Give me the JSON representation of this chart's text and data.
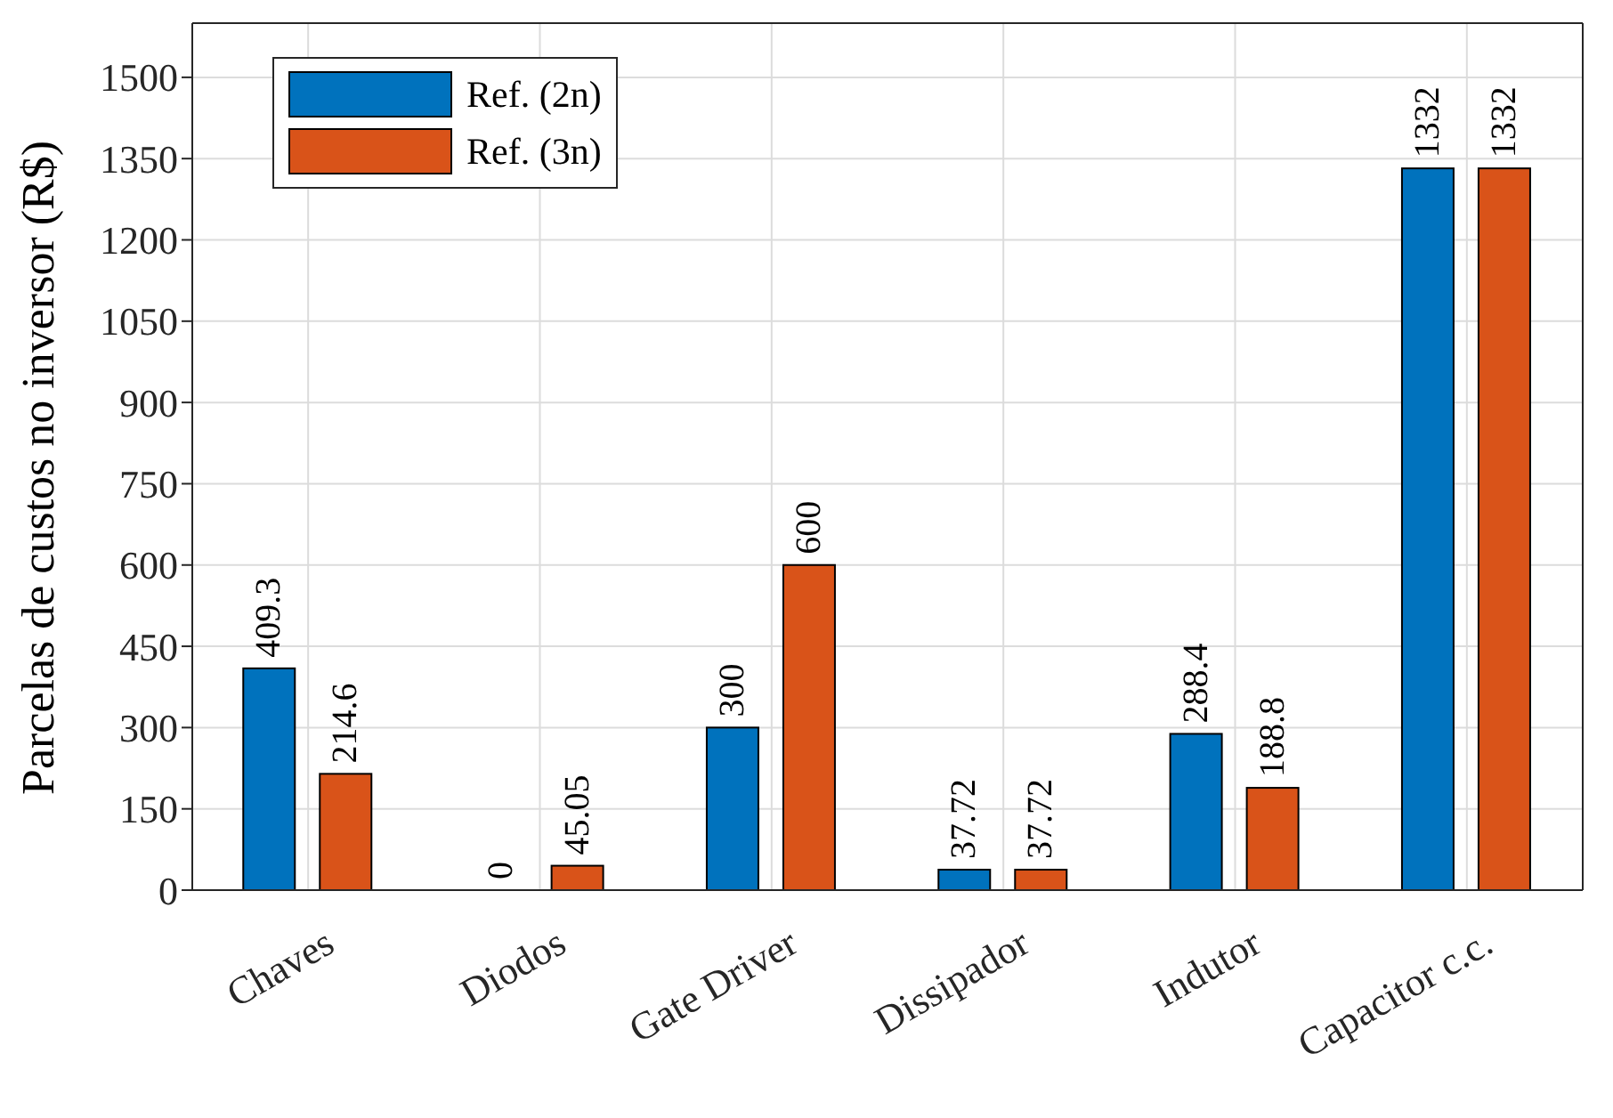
{
  "chart_data": {
    "type": "bar",
    "ylabel": "Parcelas de custos no inversor (R$)",
    "categories": [
      "Chaves",
      "Diodos",
      "Gate Driver",
      "Dissipador",
      "Indutor",
      "Capacitor c.c."
    ],
    "series": [
      {
        "name": "Ref. (2n)",
        "color": "#0072bd",
        "values": [
          409.3,
          0,
          300,
          37.72,
          288.4,
          1332
        ]
      },
      {
        "name": "Ref. (3n)",
        "color": "#d95319",
        "values": [
          214.6,
          45.05,
          600,
          37.72,
          188.8,
          1332
        ]
      }
    ],
    "ylim": [
      0,
      1600
    ],
    "yticks": [
      0,
      150,
      300,
      450,
      600,
      750,
      900,
      1050,
      1200,
      1350,
      1500
    ],
    "grid": true,
    "legend": "top left",
    "data_labels": true
  }
}
